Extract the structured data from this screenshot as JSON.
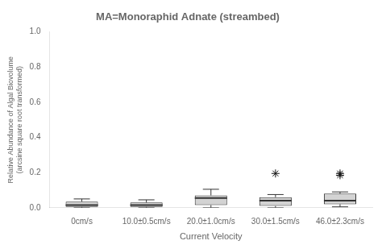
{
  "chart_data": {
    "type": "box",
    "title": "MA=Monoraphid Adnate (streambed)",
    "xlabel": "Current Velocity",
    "ylabel": "Relative Abundance of Algal Biovolume\n(arcsine square root transformed)",
    "categories": [
      "0cm/s",
      "10.0±0.5cm/s",
      "20.0±1.0cm/s",
      "30.0±1.5cm/s",
      "46.0±2.3cm/s"
    ],
    "boxes": [
      {
        "whislo": 0.0,
        "q1": 0.005,
        "med": 0.015,
        "q3": 0.035,
        "whishi": 0.05,
        "fliers": []
      },
      {
        "whislo": 0.0,
        "q1": 0.005,
        "med": 0.015,
        "q3": 0.03,
        "whishi": 0.045,
        "fliers": []
      },
      {
        "whislo": 0.0,
        "q1": 0.015,
        "med": 0.055,
        "q3": 0.07,
        "whishi": 0.105,
        "fliers": []
      },
      {
        "whislo": 0.0,
        "q1": 0.01,
        "med": 0.04,
        "q3": 0.06,
        "whishi": 0.075,
        "fliers": [
          0.195
        ]
      },
      {
        "whislo": 0.005,
        "q1": 0.02,
        "med": 0.04,
        "q3": 0.08,
        "whishi": 0.09,
        "fliers": [
          0.185,
          0.195
        ]
      }
    ],
    "color": "#d3d3d3",
    "ylim": [
      0.0,
      1.0
    ],
    "yticks": [
      {
        "value": 0.0,
        "label": "0.0"
      },
      0.2,
      0.4,
      0.6,
      0.8,
      {
        "value": 1.0,
        "label": "1.0"
      }
    ],
    "grid": false
  }
}
